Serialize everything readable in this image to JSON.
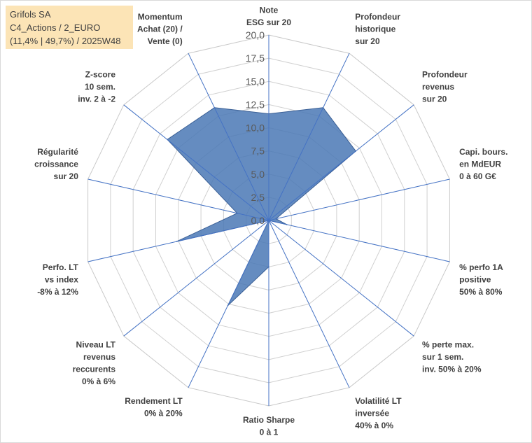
{
  "title_box": {
    "line1": "Grifols SA",
    "line2": "C4_Actions / 2_EURO",
    "line3": "(11,4% | 49,7%) / 2025W48",
    "background": "#fce4b6"
  },
  "chart_data": {
    "type": "radar",
    "rmin": 0,
    "rmax": 20,
    "ticks": [
      "0,0",
      "2,5",
      "5,0",
      "7,5",
      "10,0",
      "12,5",
      "15,0",
      "17,5",
      "20,0"
    ],
    "axes": [
      {
        "label": [
          "Note",
          "ESG sur 20"
        ],
        "value": 11.5
      },
      {
        "label": [
          "Profondeur",
          "historique",
          "sur 20"
        ],
        "value": 13.5
      },
      {
        "label": [
          "Profondeur",
          "revenus",
          "sur 20"
        ],
        "value": 12.0
      },
      {
        "label": [
          "Capi. bours.",
          "en MdEUR",
          "0 à 60 G€"
        ],
        "value": 0.8
      },
      {
        "label": [
          "% perfo 1A",
          "positive",
          "50% à 80%"
        ],
        "value": 2.0
      },
      {
        "label": [
          "% perte max.",
          "sur 1 sem.",
          "inv. 50% à 20%"
        ],
        "value": 0.0
      },
      {
        "label": [
          "Volatilité LT",
          "inversée",
          "40% à 0%"
        ],
        "value": 0.0
      },
      {
        "label": [
          "Ratio Sharpe",
          "0 à 1"
        ],
        "value": 5.0
      },
      {
        "label": [
          "Rendement LT",
          "0% à 20%"
        ],
        "value": 10.2
      },
      {
        "label": [
          "Niveau LT",
          "revenus",
          "reccurents",
          "0% à 6%"
        ],
        "value": 0.0
      },
      {
        "label": [
          "Perfo. LT",
          "vs index",
          "-8% à 12%"
        ],
        "value": 10.2
      },
      {
        "label": [
          "Régularité",
          "croissance",
          "sur 20"
        ],
        "value": 3.5
      },
      {
        "label": [
          "Z-score",
          "10 sem.",
          "inv. 2 à -2"
        ],
        "value": 14.0
      },
      {
        "label": [
          "Momentum",
          "Achat (20) /",
          "Vente (0)"
        ],
        "value": 13.5
      }
    ],
    "colors": {
      "fill": "#4a78b5",
      "stroke": "#3a5f95",
      "spoke": "#4472c4",
      "grid": "#d0d0d0"
    }
  }
}
